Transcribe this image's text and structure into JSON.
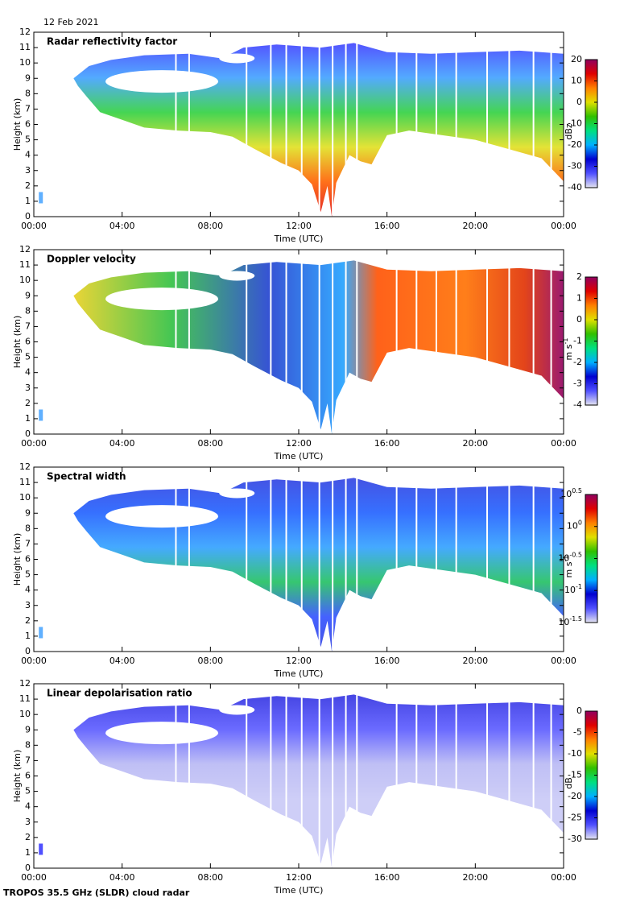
{
  "date": "12 Feb 2021",
  "footer": "TROPOS 35.5 GHz (SLDR) cloud radar",
  "chart_data": [
    {
      "type": "heatmap",
      "title": "Radar reflectivity factor",
      "xlabel": "Time (UTC)",
      "ylabel": "Height (km)",
      "xlim": [
        0,
        24
      ],
      "xticks": [
        {
          "value": 0,
          "label": "00:00"
        },
        {
          "value": 4,
          "label": "04:00"
        },
        {
          "value": 8,
          "label": "08:00"
        },
        {
          "value": 12,
          "label": "12:00"
        },
        {
          "value": 16,
          "label": "16:00"
        },
        {
          "value": 20,
          "label": "20:00"
        },
        {
          "value": 24,
          "label": "00:00"
        }
      ],
      "ylim": [
        0,
        12
      ],
      "yticks": [
        0,
        1,
        2,
        3,
        4,
        5,
        6,
        7,
        8,
        9,
        10,
        11,
        12
      ],
      "colorbar": {
        "label": "dBz",
        "lim": [
          -40,
          20
        ],
        "ticks": [
          -40,
          -30,
          -20,
          -10,
          0,
          10,
          20
        ],
        "colormap": [
          "#e4e4f0",
          "#5050ff",
          "#0000d0",
          "#00b0ff",
          "#00e080",
          "#30c000",
          "#e0e000",
          "#ff8000",
          "#e00000",
          "#900060"
        ]
      }
    },
    {
      "type": "heatmap",
      "title": "Doppler velocity",
      "xlabel": "Time (UTC)",
      "ylabel": "Height (km)",
      "xlim": [
        0,
        24
      ],
      "xticks": [
        {
          "value": 0,
          "label": "00:00"
        },
        {
          "value": 4,
          "label": "04:00"
        },
        {
          "value": 8,
          "label": "08:00"
        },
        {
          "value": 12,
          "label": "12:00"
        },
        {
          "value": 16,
          "label": "16:00"
        },
        {
          "value": 20,
          "label": "20:00"
        },
        {
          "value": 24,
          "label": "00:00"
        }
      ],
      "ylim": [
        0,
        12
      ],
      "yticks": [
        0,
        1,
        2,
        3,
        4,
        5,
        6,
        7,
        8,
        9,
        10,
        11,
        12
      ],
      "colorbar": {
        "label": "m s^-1",
        "lim": [
          -4,
          2
        ],
        "ticks": [
          -4,
          -3,
          -2,
          -1,
          0,
          1,
          2
        ],
        "colormap": [
          "#e4e4f0",
          "#5050ff",
          "#0000d0",
          "#00b0ff",
          "#00e080",
          "#30c000",
          "#e0e000",
          "#ff8000",
          "#e00000",
          "#900060"
        ]
      }
    },
    {
      "type": "heatmap",
      "title": "Spectral width",
      "xlabel": "Time (UTC)",
      "ylabel": "Height (km)",
      "xlim": [
        0,
        24
      ],
      "xticks": [
        {
          "value": 0,
          "label": "00:00"
        },
        {
          "value": 4,
          "label": "04:00"
        },
        {
          "value": 8,
          "label": "08:00"
        },
        {
          "value": 12,
          "label": "12:00"
        },
        {
          "value": 16,
          "label": "16:00"
        },
        {
          "value": 20,
          "label": "20:00"
        },
        {
          "value": 24,
          "label": "00:00"
        }
      ],
      "ylim": [
        0,
        12
      ],
      "yticks": [
        0,
        1,
        2,
        3,
        4,
        5,
        6,
        7,
        8,
        9,
        10,
        11,
        12
      ],
      "colorbar": {
        "label": "m s^-1",
        "log": true,
        "lim": [
          0.0316,
          3.162
        ],
        "ticks": [
          {
            "value": 0.0316,
            "label": "10^-1.5"
          },
          {
            "value": 0.1,
            "label": "10^-1"
          },
          {
            "value": 0.316,
            "label": "10^-0.5"
          },
          {
            "value": 1,
            "label": "10^0"
          },
          {
            "value": 3.162,
            "label": "10^0.5"
          }
        ],
        "colormap": [
          "#e4e4f0",
          "#5050ff",
          "#0000d0",
          "#00b0ff",
          "#00e080",
          "#30c000",
          "#e0e000",
          "#ff8000",
          "#e00000",
          "#900060"
        ]
      }
    },
    {
      "type": "heatmap",
      "title": "Linear depolarisation ratio",
      "xlabel": "Time (UTC)",
      "ylabel": "Height (km)",
      "xlim": [
        0,
        24
      ],
      "xticks": [
        {
          "value": 0,
          "label": "00:00"
        },
        {
          "value": 4,
          "label": "04:00"
        },
        {
          "value": 8,
          "label": "08:00"
        },
        {
          "value": 12,
          "label": "12:00"
        },
        {
          "value": 16,
          "label": "16:00"
        },
        {
          "value": 20,
          "label": "20:00"
        },
        {
          "value": 24,
          "label": "00:00"
        }
      ],
      "ylim": [
        0,
        12
      ],
      "yticks": [
        0,
        1,
        2,
        3,
        4,
        5,
        6,
        7,
        8,
        9,
        10,
        11,
        12
      ],
      "colorbar": {
        "label": "dB",
        "lim": [
          -30,
          0
        ],
        "ticks": [
          -30,
          -25,
          -20,
          -15,
          -10,
          -5,
          0
        ],
        "colormap": [
          "#e4e4f0",
          "#5050ff",
          "#0000d0",
          "#00b0ff",
          "#00e080",
          "#30c000",
          "#e0e000",
          "#ff8000",
          "#e00000",
          "#900060"
        ]
      }
    }
  ]
}
